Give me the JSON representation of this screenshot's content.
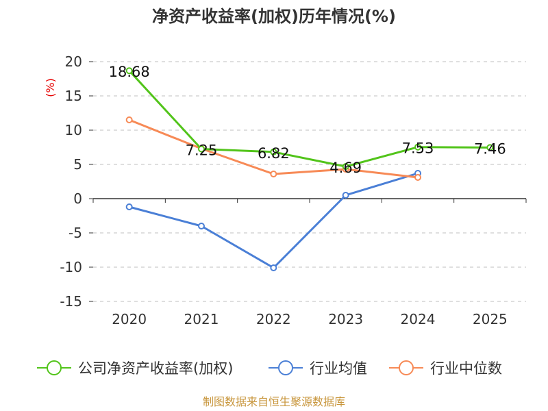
{
  "chart_data": {
    "type": "line",
    "title": "净资产收益率(加权)历年情况(%)",
    "ylabel": "(%)",
    "xlabel": "",
    "categories": [
      "2020",
      "2021",
      "2022",
      "2023",
      "2024",
      "2025"
    ],
    "ylim": [
      -15,
      20
    ],
    "yticks": [
      20,
      15,
      10,
      5,
      0,
      -5,
      -10,
      -15
    ],
    "grid": true,
    "legend_position": "bottom",
    "series": [
      {
        "name": "公司净资产收益率(加权)",
        "color": "#52c41a",
        "values": [
          18.68,
          7.25,
          6.82,
          4.69,
          7.53,
          7.46
        ],
        "labels": [
          "18.68",
          "7.25",
          "6.82",
          "4.69",
          "7.53",
          "7.46"
        ]
      },
      {
        "name": "行业均值",
        "color": "#4a7fd6",
        "values": [
          -1.2,
          -4.0,
          -10.1,
          0.5,
          3.7,
          null
        ]
      },
      {
        "name": "行业中位数",
        "color": "#f78a56",
        "values": [
          11.5,
          7.3,
          3.6,
          4.3,
          3.1,
          null
        ]
      }
    ],
    "source": "制图数据来自恒生聚源数据库"
  }
}
